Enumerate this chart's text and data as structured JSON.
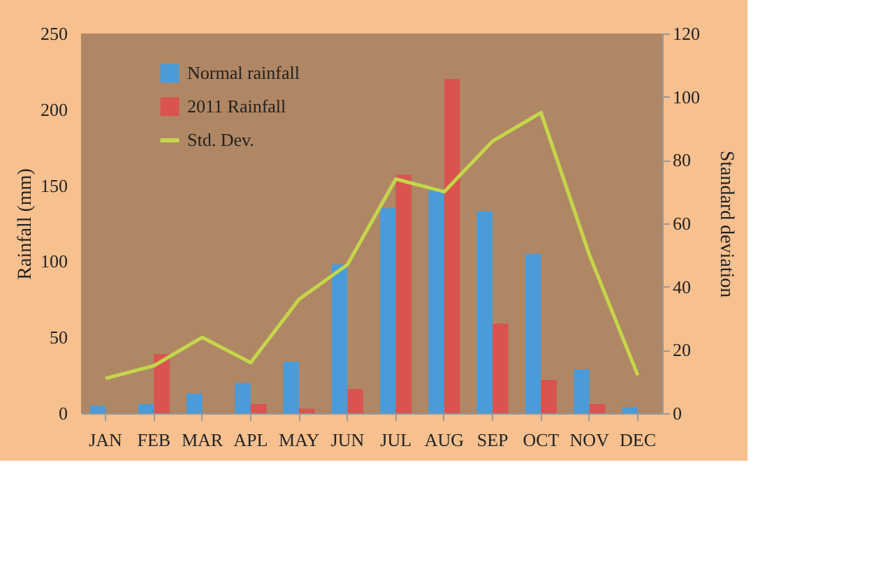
{
  "chart_data": {
    "type": "bar",
    "ylabel": "Rainfall (mm)",
    "y2label": "Standard deviation",
    "categories": [
      "JAN",
      "FEB",
      "MAR",
      "APL",
      "MAY",
      "JUN",
      "JUL",
      "AUG",
      "SEP",
      "OCT",
      "NOV",
      "DEC"
    ],
    "series": [
      {
        "name": "Normal rainfall",
        "color": "#4a9bd8",
        "values": [
          5,
          6,
          13,
          20,
          34,
          98,
          135,
          147,
          133,
          105,
          29,
          4
        ]
      },
      {
        "name": "2011 Rainfall",
        "color": "#d9534f",
        "values": [
          0,
          39,
          0,
          6,
          3,
          16,
          157,
          220,
          59,
          22,
          6,
          0
        ]
      },
      {
        "name": "Std. Dev.",
        "color": "#c5d64a",
        "type": "line",
        "axis": "y2",
        "values": [
          11,
          15,
          24,
          16,
          36,
          47,
          74,
          70,
          86,
          95,
          50,
          12
        ]
      }
    ],
    "ylim": [
      0,
      250
    ],
    "yticks": [
      0,
      50,
      100,
      150,
      200,
      250
    ],
    "y2lim": [
      0,
      120
    ],
    "y2ticks": [
      0,
      20,
      40,
      60,
      80,
      100,
      120
    ],
    "grid": false,
    "legend": "top left",
    "marker": "none",
    "line_style": "solid"
  }
}
